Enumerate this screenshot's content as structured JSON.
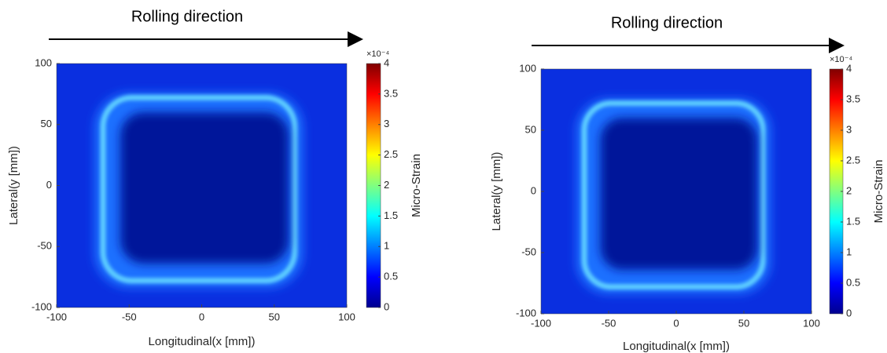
{
  "chart_data": [
    {
      "type": "heatmap",
      "title": "Rolling direction",
      "x_label": "Longitudinal(x [mm])",
      "y_label": "Lateral(y [mm])",
      "xlim": [
        -100,
        100
      ],
      "xticks": [
        -100,
        -50,
        0,
        50,
        100
      ],
      "ylim": [
        -100,
        100
      ],
      "yticks": [
        -100,
        -50,
        0,
        50,
        100
      ],
      "colorbar": {
        "label": "Micro-Strain",
        "exponent": "×10⁻⁴",
        "colormap": "jet",
        "lim": [
          0,
          4
        ],
        "ticks": [
          0,
          0.5,
          1,
          1.5,
          2,
          2.5,
          3,
          3.5,
          4
        ]
      }
    },
    {
      "type": "heatmap",
      "title": "Rolling direction",
      "x_label": "Longitudinal(x [mm])",
      "y_label": "Lateral(y [mm])",
      "xlim": [
        -100,
        100
      ],
      "xticks": [
        -100,
        -50,
        0,
        50,
        100
      ],
      "ylim": [
        -100,
        100
      ],
      "yticks": [
        -100,
        -50,
        0,
        50,
        100
      ],
      "colorbar": {
        "label": "Micro-Strain",
        "exponent": "×10⁻⁴",
        "colormap": "jet",
        "lim": [
          0,
          4
        ],
        "ticks": [
          0,
          0.5,
          1,
          1.5,
          2,
          2.5,
          3,
          3.5,
          4
        ]
      }
    }
  ]
}
